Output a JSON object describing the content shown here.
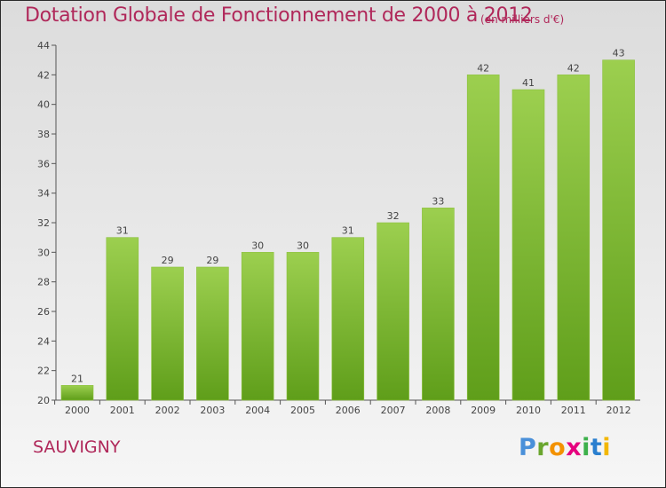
{
  "header": {
    "title": "Dotation Globale de Fonctionnement de 2000 à 2012",
    "subtitle": "(en milliers d'€)"
  },
  "footer": {
    "place": "SAUVIGNY",
    "logo": "Proxiti"
  },
  "colors": {
    "title": "#b0285a",
    "bar_light": "#9ccf4f",
    "bar_dark": "#5f9e1a"
  },
  "chart_data": {
    "type": "bar",
    "title": "Dotation Globale de Fonctionnement de 2000 à 2012",
    "subtitle": "(en milliers d'€)",
    "categories": [
      "2000",
      "2001",
      "2002",
      "2003",
      "2004",
      "2005",
      "2006",
      "2007",
      "2008",
      "2009",
      "2010",
      "2011",
      "2012"
    ],
    "values": [
      21,
      31,
      29,
      29,
      30,
      30,
      31,
      32,
      33,
      42,
      41,
      42,
      43
    ],
    "ylim": [
      20,
      44
    ],
    "yticks": [
      20,
      22,
      24,
      26,
      28,
      30,
      32,
      34,
      36,
      38,
      40,
      42,
      44
    ],
    "grid": false,
    "data_labels": true
  }
}
